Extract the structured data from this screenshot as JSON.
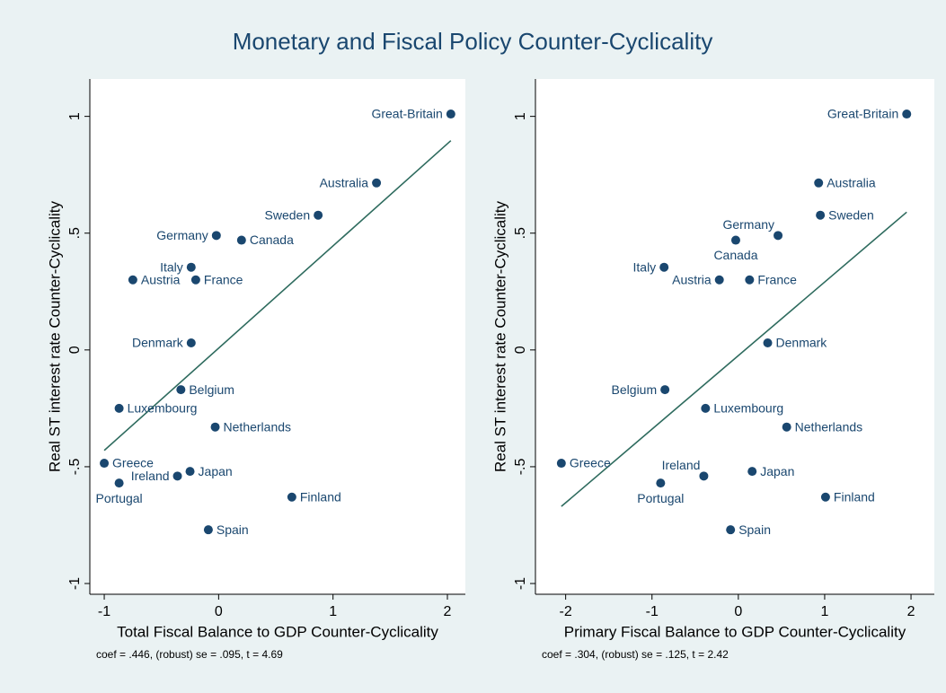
{
  "title": "Monetary and Fiscal Policy Counter-Cyclicality",
  "chart_data": [
    {
      "type": "scatter",
      "xlabel": "Total Fiscal Balance to GDP Counter-Cyclicality",
      "ylabel": "Real ST interest rate Counter-Cyclicality",
      "note": "coef = .446, (robust) se = .095, t = 4.69",
      "color": "#1a476f",
      "labels": [
        "Great-Britain",
        "Australia",
        "Sweden",
        "Germany",
        "Canada",
        "Italy",
        "Austria",
        "France",
        "Denmark",
        "Belgium",
        "Luxembourg",
        "Netherlands",
        "Greece",
        "Ireland",
        "Japan",
        "Portugal",
        "Finland",
        "Spain"
      ],
      "x": [
        2.03,
        1.38,
        0.87,
        -0.02,
        0.2,
        -0.24,
        -0.75,
        -0.2,
        -0.24,
        -0.33,
        -0.87,
        -0.03,
        -1.0,
        -0.36,
        -0.25,
        -0.87,
        0.64,
        -0.09
      ],
      "y": [
        1.01,
        0.715,
        0.577,
        0.49,
        0.47,
        0.354,
        0.3,
        0.3,
        0.03,
        -0.17,
        -0.25,
        -0.33,
        -0.485,
        -0.54,
        -0.52,
        -0.57,
        -0.63,
        -0.77
      ],
      "fit": {
        "x": [
          -1.0,
          2.03
        ],
        "y": [
          -0.43,
          0.896
        ],
        "color": "#2e6b5e"
      },
      "xlim": [
        -1.126,
        2.157
      ],
      "ylim": [
        -1.046,
        1.16
      ],
      "xticks": [
        -1,
        0,
        1,
        2
      ],
      "yticks": [
        {
          "value": -1,
          "label": "-1"
        },
        {
          "value": -0.5,
          "label": "-.5"
        },
        0,
        {
          "value": 0.5,
          "label": ".5"
        },
        1
      ]
    },
    {
      "type": "scatter",
      "xlabel": "Primary Fiscal Balance to GDP Counter-Cyclicality",
      "ylabel": "Real ST interest rate Counter-Cyclicality",
      "note": "coef = .304, (robust) se = .125, t = 2.42",
      "color": "#1a476f",
      "labels": [
        "Great-Britain",
        "Australia",
        "Sweden",
        "Germany",
        "Canada",
        "Italy",
        "Austria",
        "France",
        "Denmark",
        "Belgium",
        "Luxembourg",
        "Netherlands",
        "Greece",
        "Ireland",
        "Japan",
        "Portugal",
        "Finland",
        "Spain"
      ],
      "x": [
        1.95,
        0.93,
        0.95,
        0.46,
        -0.03,
        -0.86,
        -0.22,
        0.13,
        0.34,
        -0.85,
        -0.38,
        0.56,
        -2.05,
        -0.4,
        0.16,
        -0.9,
        1.01,
        -0.09
      ],
      "y": [
        1.01,
        0.715,
        0.577,
        0.49,
        0.47,
        0.354,
        0.3,
        0.3,
        0.03,
        -0.17,
        -0.25,
        -0.33,
        -0.485,
        -0.54,
        -0.52,
        -0.57,
        -0.63,
        -0.77
      ],
      "fit": {
        "x": [
          -2.05,
          1.95
        ],
        "y": [
          -0.67,
          0.59
        ],
        "color": "#2e6b5e"
      },
      "xlim": [
        -2.35,
        2.27
      ],
      "ylim": [
        -1.046,
        1.16
      ],
      "xticks": [
        -2,
        -1,
        0,
        1,
        2
      ],
      "yticks": [
        {
          "value": -1,
          "label": "-1"
        },
        {
          "value": -0.5,
          "label": "-.5"
        },
        0,
        {
          "value": 0.5,
          "label": ".5"
        },
        1
      ]
    }
  ]
}
